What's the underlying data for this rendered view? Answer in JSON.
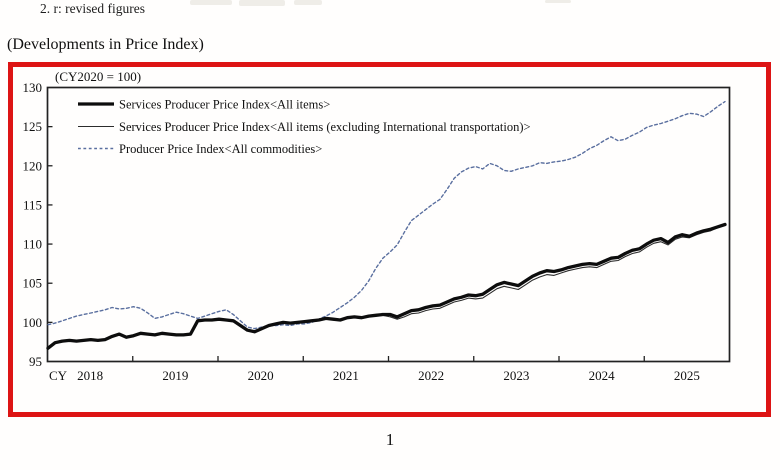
{
  "page": {
    "note_line": "2. r: revised figures",
    "section_heading": "(Developments in Price Index)",
    "page_number": "1"
  },
  "chart": {
    "frame_border_color": "#dd1414",
    "plot_box_color": "#222222",
    "background": "#fffefd"
  },
  "chart_data": {
    "type": "line",
    "title": "(Developments in Price Index)",
    "unit_note": "(CY2020 = 100)",
    "grid": false,
    "legend_position": "top-left-inside",
    "x_axis": {
      "label": "CY",
      "tick_labels": [
        "2018",
        "2019",
        "2020",
        "2021",
        "2022",
        "2023",
        "2024",
        "2025"
      ],
      "frequency": "monthly",
      "range": [
        "2018-01",
        "2025-12"
      ]
    },
    "y_axis": {
      "ticks": [
        95,
        100,
        105,
        110,
        115,
        120,
        125,
        130
      ],
      "range": [
        95,
        130
      ]
    },
    "series": [
      {
        "name": "Services Producer Price Index<All items>",
        "style": "solid",
        "color": "#0d0d0d",
        "stroke_width": 3.3,
        "values": [
          96.7,
          97.4,
          97.6,
          97.7,
          97.6,
          97.7,
          97.8,
          97.7,
          97.8,
          98.2,
          98.5,
          98.1,
          98.3,
          98.6,
          98.5,
          98.4,
          98.6,
          98.5,
          98.4,
          98.4,
          98.5,
          100.2,
          100.3,
          100.3,
          100.4,
          100.3,
          100.2,
          99.6,
          99.0,
          98.8,
          99.2,
          99.6,
          99.8,
          100.0,
          99.9,
          100.0,
          100.1,
          100.2,
          100.3,
          100.5,
          100.4,
          100.3,
          100.6,
          100.7,
          100.6,
          100.8,
          100.9,
          101.0,
          101.0,
          100.7,
          101.1,
          101.5,
          101.6,
          101.9,
          102.1,
          102.2,
          102.6,
          103.0,
          103.2,
          103.5,
          103.4,
          103.6,
          104.2,
          104.8,
          105.1,
          104.9,
          104.7,
          105.3,
          105.9,
          106.3,
          106.6,
          106.5,
          106.7,
          107.0,
          107.2,
          107.4,
          107.5,
          107.4,
          107.8,
          108.2,
          108.3,
          108.8,
          109.2,
          109.4,
          110.0,
          110.5,
          110.7,
          110.2,
          110.9,
          111.2,
          111.0,
          111.4,
          111.7,
          111.9,
          112.2,
          112.5
        ]
      },
      {
        "name": "Services Producer Price Index<All items (excluding International transportation)>",
        "style": "solid",
        "color": "#2c2c2c",
        "stroke_width": 1.1,
        "values": [
          96.7,
          97.4,
          97.6,
          97.7,
          97.6,
          97.7,
          97.8,
          97.7,
          97.8,
          98.2,
          98.5,
          98.1,
          98.3,
          98.6,
          98.5,
          98.4,
          98.6,
          98.5,
          98.4,
          98.4,
          98.5,
          100.2,
          100.3,
          100.3,
          100.4,
          100.3,
          100.2,
          99.6,
          99.0,
          98.8,
          99.2,
          99.6,
          99.8,
          100.0,
          99.9,
          100.0,
          100.0,
          100.1,
          100.2,
          100.4,
          100.3,
          100.2,
          100.5,
          100.6,
          100.5,
          100.7,
          100.8,
          100.9,
          100.7,
          100.4,
          100.7,
          101.1,
          101.2,
          101.5,
          101.7,
          101.8,
          102.2,
          102.6,
          102.8,
          103.1,
          103.0,
          103.1,
          103.7,
          104.3,
          104.6,
          104.4,
          104.2,
          104.8,
          105.4,
          105.8,
          106.1,
          106.0,
          106.3,
          106.6,
          106.8,
          107.0,
          107.1,
          107.0,
          107.4,
          107.8,
          107.9,
          108.4,
          108.8,
          109.0,
          109.6,
          110.1,
          110.3,
          109.9,
          110.6,
          110.9,
          110.8,
          111.2,
          111.5,
          111.7,
          112.1,
          112.4
        ]
      },
      {
        "name": "Producer Price Index<All commodities>",
        "style": "dashed",
        "color": "#5a6f9f",
        "stroke_width": 1.4,
        "values": [
          99.7,
          99.9,
          100.2,
          100.5,
          100.8,
          101.0,
          101.2,
          101.4,
          101.6,
          101.9,
          101.7,
          101.8,
          102.0,
          101.8,
          101.2,
          100.5,
          100.7,
          101.0,
          101.3,
          101.1,
          100.8,
          100.5,
          100.8,
          101.1,
          101.4,
          101.6,
          101.0,
          100.2,
          99.4,
          99.2,
          99.4,
          99.6,
          99.6,
          99.7,
          99.6,
          99.8,
          99.8,
          100.0,
          100.4,
          100.8,
          101.3,
          101.9,
          102.5,
          103.2,
          104.1,
          105.3,
          106.9,
          108.2,
          109.0,
          109.9,
          111.5,
          113.0,
          113.7,
          114.4,
          115.1,
          115.7,
          117.0,
          118.4,
          119.2,
          119.7,
          119.9,
          119.6,
          120.3,
          120.0,
          119.4,
          119.3,
          119.6,
          119.8,
          120.0,
          120.4,
          120.3,
          120.5,
          120.6,
          120.8,
          121.1,
          121.6,
          122.2,
          122.6,
          123.2,
          123.7,
          123.2,
          123.4,
          123.9,
          124.3,
          124.9,
          125.2,
          125.4,
          125.7,
          126.0,
          126.4,
          126.7,
          126.6,
          126.3,
          126.9,
          127.6,
          128.2
        ]
      }
    ]
  }
}
